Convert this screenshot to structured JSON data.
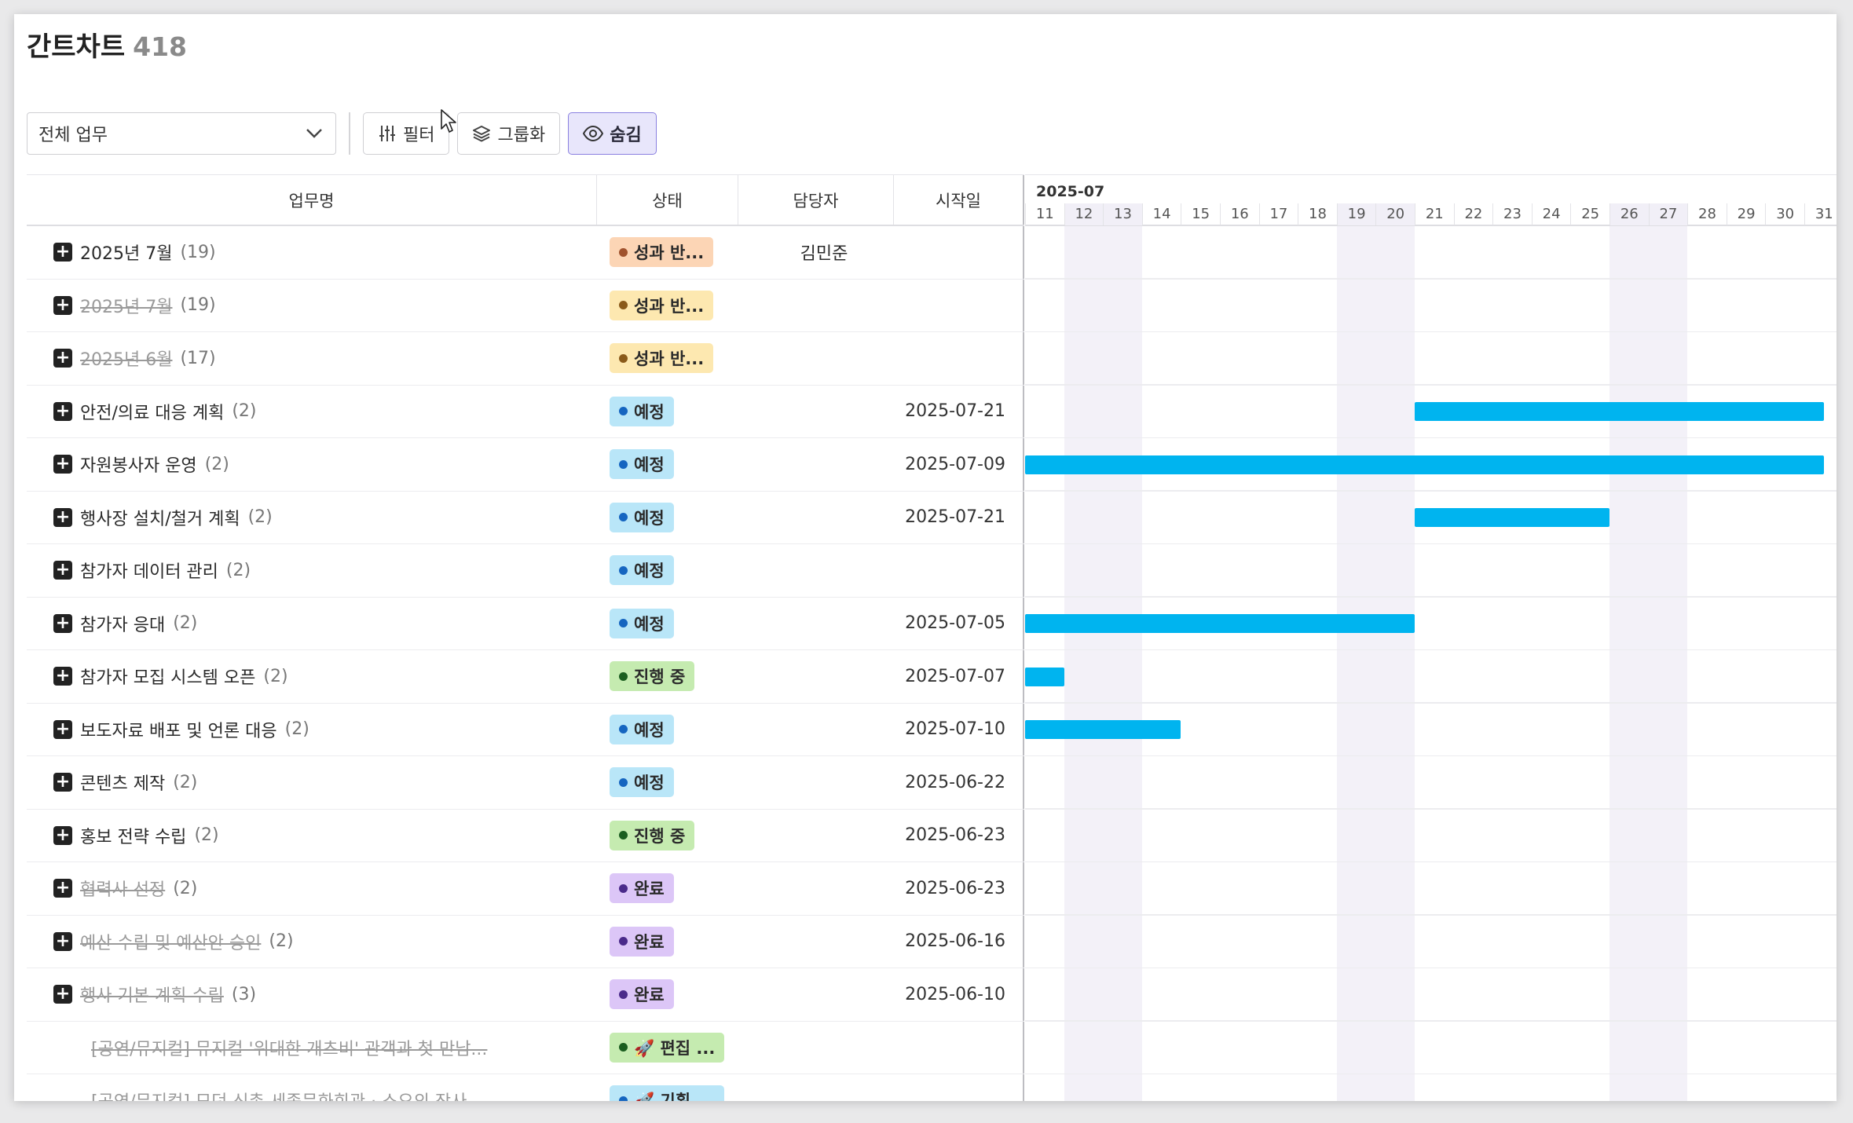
{
  "header": {
    "title": "간트차트",
    "count": "418"
  },
  "toolbar": {
    "select_value": "전체 업무",
    "filter_label": "필터",
    "group_label": "그룹화",
    "hide_label": "숨김"
  },
  "columns": {
    "name": "업무명",
    "status": "상태",
    "owner": "담당자",
    "start": "시작일"
  },
  "colors": {
    "bar": "#00b4ef",
    "status_perf": {
      "bg": "#fcd5b5",
      "dot": "#a0522d"
    },
    "status_perf2": {
      "bg": "#fde8b0",
      "dot": "#8a5a1a"
    },
    "status_planned": {
      "bg": "#b9e6f8",
      "dot": "#1565c0"
    },
    "status_progress": {
      "bg": "#c5ebb0",
      "dot": "#1b5e20"
    },
    "status_done": {
      "bg": "#dcc6f7",
      "dot": "#4a2a8a"
    }
  },
  "gantt": {
    "month": "2025-07",
    "days": [
      "11",
      "12",
      "13",
      "14",
      "15",
      "16",
      "17",
      "18",
      "19",
      "20",
      "21",
      "22",
      "23",
      "24",
      "25",
      "26",
      "27",
      "28",
      "29",
      "30",
      "31"
    ],
    "weekend_days": [
      "12",
      "13",
      "19",
      "20",
      "26",
      "27"
    ]
  },
  "rows": [
    {
      "name": "2025년 7월",
      "count": "(19)",
      "done": false,
      "status": "성과 반...",
      "status_key": "status_perf",
      "owner": "김민준",
      "start": "",
      "group": true,
      "bar": null
    },
    {
      "name": "2025년 7월",
      "count": "(19)",
      "done": true,
      "status": "성과 반...",
      "status_key": "status_perf2",
      "owner": "",
      "start": "",
      "group": true,
      "bar": null
    },
    {
      "name": "2025년 6월",
      "count": "(17)",
      "done": true,
      "status": "성과 반...",
      "status_key": "status_perf2",
      "owner": "",
      "start": "",
      "group": true,
      "bar": null
    },
    {
      "name": "안전/의료 대응 계획",
      "count": "(2)",
      "done": false,
      "status": "예정",
      "status_key": "status_planned",
      "owner": "",
      "start": "2025-07-21",
      "group": true,
      "bar": {
        "from": 21,
        "to": 31.5
      }
    },
    {
      "name": "자원봉사자 운영",
      "count": "(2)",
      "done": false,
      "status": "예정",
      "status_key": "status_planned",
      "owner": "",
      "start": "2025-07-09",
      "group": true,
      "bar": {
        "from": 11,
        "to": 31.5
      }
    },
    {
      "name": "행사장 설치/철거 계획",
      "count": "(2)",
      "done": false,
      "status": "예정",
      "status_key": "status_planned",
      "owner": "",
      "start": "2025-07-21",
      "group": true,
      "bar": {
        "from": 21,
        "to": 26
      }
    },
    {
      "name": "참가자 데이터 관리",
      "count": "(2)",
      "done": false,
      "status": "예정",
      "status_key": "status_planned",
      "owner": "",
      "start": "",
      "group": true,
      "bar": null
    },
    {
      "name": "참가자 응대",
      "count": "(2)",
      "done": false,
      "status": "예정",
      "status_key": "status_planned",
      "owner": "",
      "start": "2025-07-05",
      "group": true,
      "bar": {
        "from": 11,
        "to": 21
      }
    },
    {
      "name": "참가자 모집 시스템 오픈",
      "count": "(2)",
      "done": false,
      "status": "진행 중",
      "status_key": "status_progress",
      "owner": "",
      "start": "2025-07-07",
      "group": true,
      "bar": {
        "from": 11,
        "to": 12
      }
    },
    {
      "name": "보도자료 배포 및 언론 대응",
      "count": "(2)",
      "done": false,
      "status": "예정",
      "status_key": "status_planned",
      "owner": "",
      "start": "2025-07-10",
      "group": true,
      "bar": {
        "from": 11,
        "to": 15
      }
    },
    {
      "name": "콘텐츠 제작",
      "count": "(2)",
      "done": false,
      "status": "예정",
      "status_key": "status_planned",
      "owner": "",
      "start": "2025-06-22",
      "group": true,
      "bar": null
    },
    {
      "name": "홍보 전략 수립",
      "count": "(2)",
      "done": false,
      "status": "진행 중",
      "status_key": "status_progress",
      "owner": "",
      "start": "2025-06-23",
      "group": true,
      "bar": null
    },
    {
      "name": "협력사 선정",
      "count": "(2)",
      "done": true,
      "status": "완료",
      "status_key": "status_done",
      "owner": "",
      "start": "2025-06-23",
      "group": true,
      "bar": null
    },
    {
      "name": "예산 수립 및 예산안 승인",
      "count": "(2)",
      "done": true,
      "status": "완료",
      "status_key": "status_done",
      "owner": "",
      "start": "2025-06-16",
      "group": true,
      "bar": null
    },
    {
      "name": "행사 기본 계획 수립",
      "count": "(3)",
      "done": true,
      "status": "완료",
      "status_key": "status_done",
      "owner": "",
      "start": "2025-06-10",
      "group": true,
      "bar": null
    },
    {
      "name": "[공연/뮤지컬] 뮤지컬 '위대한 개츠비' 관객과 첫 만남...",
      "count": "",
      "done": true,
      "status": "🚀 편집 ...",
      "status_key": "status_progress",
      "owner": "",
      "start": "",
      "group": false,
      "bar": null
    },
    {
      "name": "[공연/뮤지컬] 모던 신촌 세종문화회관 · 소요의 작사 ...",
      "count": "",
      "done": true,
      "status": "🚀 기획 ...",
      "status_key": "status_planned",
      "owner": "",
      "start": "",
      "group": false,
      "bar": null
    }
  ]
}
